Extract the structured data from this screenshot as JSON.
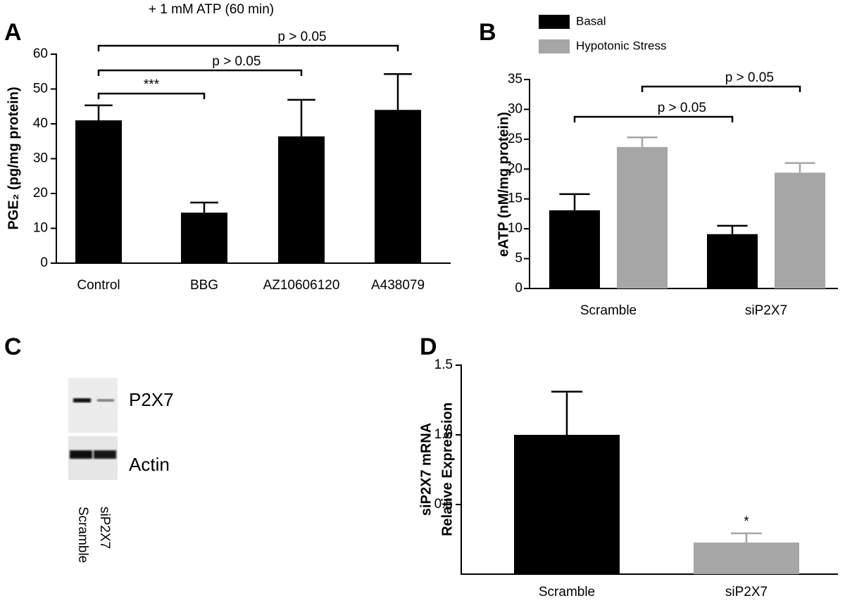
{
  "chart_data": [
    {
      "type": "bar",
      "panel": "A",
      "title": "+ 1 mM ATP (60 min)",
      "y_label": "PGE₂ (pg/mg protein)",
      "categories": [
        "Control",
        "BBG",
        "AZ10606120",
        "A438079"
      ],
      "values": [
        41.0,
        14.5,
        36.4,
        44.0
      ],
      "errors": [
        4.3,
        2.9,
        10.5,
        10.3
      ],
      "color": "#000000",
      "ylim": [
        0,
        60
      ],
      "yticks": [
        0,
        10,
        20,
        30,
        40,
        50,
        60
      ],
      "comparisons": [
        {
          "from": 0,
          "to": 1,
          "label": "***"
        },
        {
          "from": 0,
          "to": 2,
          "label": "p > 0.05"
        },
        {
          "from": 0,
          "to": 3,
          "label": "p > 0.05"
        }
      ]
    },
    {
      "type": "grouped_bar",
      "panel": "B",
      "y_label": "eATP (nM/mg protein)",
      "categories": [
        "Scramble",
        "siP2X7"
      ],
      "series": [
        {
          "name": "Basal",
          "color": "#000000",
          "values": [
            13.1,
            9.1
          ],
          "errors": [
            2.7,
            1.4
          ]
        },
        {
          "name": "Hypotonic Stress",
          "color": "#a6a6a6",
          "values": [
            23.7,
            19.4
          ],
          "errors": [
            1.6,
            1.6
          ]
        }
      ],
      "ylim": [
        0,
        35
      ],
      "yticks": [
        0,
        5,
        10,
        15,
        20,
        25,
        30,
        35
      ],
      "comparisons": [
        {
          "series": 0,
          "from": 0,
          "to": 1,
          "label": "p > 0.05"
        },
        {
          "series": 1,
          "from": 0,
          "to": 1,
          "label": "p > 0.05"
        }
      ]
    },
    {
      "type": "blot",
      "panel": "C",
      "bands": [
        "P2X7",
        "Actin"
      ],
      "lanes": [
        "Scramble",
        "siP2X7"
      ]
    },
    {
      "type": "bar",
      "panel": "D",
      "y_label": [
        "siP2X7 mRNA",
        "Relative  Expression"
      ],
      "categories": [
        "Scramble",
        "siP2X7"
      ],
      "values": [
        1.0,
        0.227
      ],
      "errors": [
        0.31,
        0.066
      ],
      "colors": [
        "#000000",
        "#a6a6a6"
      ],
      "ylim": [
        0,
        1.5
      ],
      "yticks": [
        0.5,
        {
          "value": 1.0,
          "label": "1.0"
        },
        {
          "value": 1.5,
          "label": "1.5"
        }
      ],
      "annotations": [
        {
          "category": 1,
          "label": "*"
        }
      ]
    }
  ]
}
